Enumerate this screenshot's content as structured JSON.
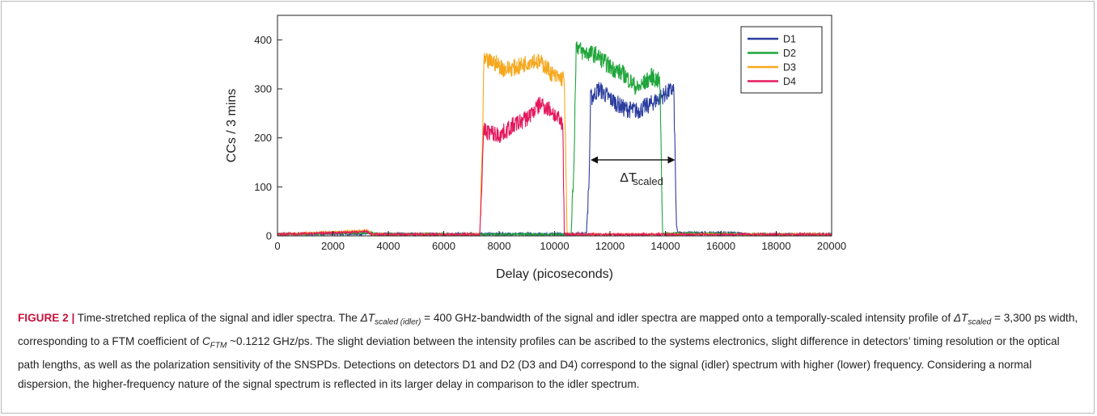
{
  "chart_data": {
    "type": "line",
    "xlabel": "Delay (picoseconds)",
    "ylabel": "CCs / 3 mins",
    "xlim": [
      0,
      20000
    ],
    "ylim": [
      0,
      450
    ],
    "xticks": [
      0,
      2000,
      4000,
      6000,
      8000,
      10000,
      12000,
      14000,
      16000,
      18000,
      20000
    ],
    "yticks": [
      0,
      100,
      200,
      300,
      400
    ],
    "grid": false,
    "legend_position": "top-right",
    "annotation": {
      "text": "ΔT",
      "subscript": "scaled",
      "arrow_from_x": 11300,
      "arrow_to_x": 14350,
      "arrow_y": 155
    },
    "series": [
      {
        "name": "D1",
        "color": "#2b3d9e",
        "points": [
          [
            0,
            4
          ],
          [
            10500,
            4
          ],
          [
            11150,
            5
          ],
          [
            11250,
            120
          ],
          [
            11300,
            280
          ],
          [
            11600,
            300
          ],
          [
            12000,
            280
          ],
          [
            12500,
            260
          ],
          [
            13000,
            255
          ],
          [
            13500,
            270
          ],
          [
            14000,
            290
          ],
          [
            14300,
            300
          ],
          [
            14400,
            20
          ],
          [
            14450,
            6
          ],
          [
            16500,
            6
          ],
          [
            17000,
            3
          ],
          [
            20000,
            3
          ]
        ]
      },
      {
        "name": "D2",
        "color": "#1fa53a",
        "points": [
          [
            0,
            3
          ],
          [
            3100,
            6
          ],
          [
            3300,
            7
          ],
          [
            3500,
            4
          ],
          [
            7500,
            3
          ],
          [
            10600,
            3
          ],
          [
            10700,
            150
          ],
          [
            10780,
            390
          ],
          [
            11000,
            375
          ],
          [
            11500,
            370
          ],
          [
            12000,
            345
          ],
          [
            12500,
            330
          ],
          [
            13000,
            300
          ],
          [
            13500,
            325
          ],
          [
            13800,
            315
          ],
          [
            13900,
            5
          ],
          [
            16000,
            5
          ],
          [
            17000,
            3
          ],
          [
            20000,
            3
          ]
        ]
      },
      {
        "name": "D3",
        "color": "#f6a81d",
        "points": [
          [
            0,
            3
          ],
          [
            3100,
            10
          ],
          [
            3200,
            12
          ],
          [
            3400,
            3
          ],
          [
            7300,
            3
          ],
          [
            7400,
            200
          ],
          [
            7450,
            355
          ],
          [
            7800,
            355
          ],
          [
            8200,
            340
          ],
          [
            8700,
            345
          ],
          [
            9200,
            360
          ],
          [
            9600,
            350
          ],
          [
            10000,
            325
          ],
          [
            10350,
            320
          ],
          [
            10450,
            5
          ],
          [
            10600,
            3
          ],
          [
            20000,
            3
          ]
        ]
      },
      {
        "name": "D4",
        "color": "#e5185e",
        "points": [
          [
            0,
            3
          ],
          [
            3100,
            8
          ],
          [
            3200,
            10
          ],
          [
            3400,
            3
          ],
          [
            7300,
            3
          ],
          [
            7400,
            150
          ],
          [
            7450,
            215
          ],
          [
            8000,
            205
          ],
          [
            8500,
            225
          ],
          [
            9000,
            240
          ],
          [
            9500,
            270
          ],
          [
            9900,
            255
          ],
          [
            10300,
            225
          ],
          [
            10350,
            5
          ],
          [
            10500,
            3
          ],
          [
            20000,
            3
          ]
        ]
      }
    ]
  },
  "caption": {
    "label": "FIGURE 2 |",
    "part1": " Time-stretched replica of the signal and idler spectra. The ",
    "sym1": "ΔT",
    "sub1": "scaled (idler)",
    "part2": " = 400 GHz-bandwidth of the signal and idler spectra are mapped onto a temporally-scaled intensity profile of ",
    "sym2": "ΔT",
    "sub2": "scaled",
    "part3": " = 3,300 ps width, corresponding to a FTM coefficient of ",
    "sym3": "C",
    "sub3": "FTM",
    "part4": " ~0.1212 GHz/ps. The slight deviation between the intensity profiles can be ascribed to the systems electronics, slight difference in detectors’ timing resolution or the optical path lengths, as well as the polarization sensitivity of the SNSPDs. Detections on detectors D1 and D2 (D3 and D4) correspond to the signal (idler) spectrum with higher (lower) frequency. Considering a normal dispersion, the higher-frequency nature of the signal spectrum is reflected in its larger delay in comparison to the idler spectrum."
  }
}
